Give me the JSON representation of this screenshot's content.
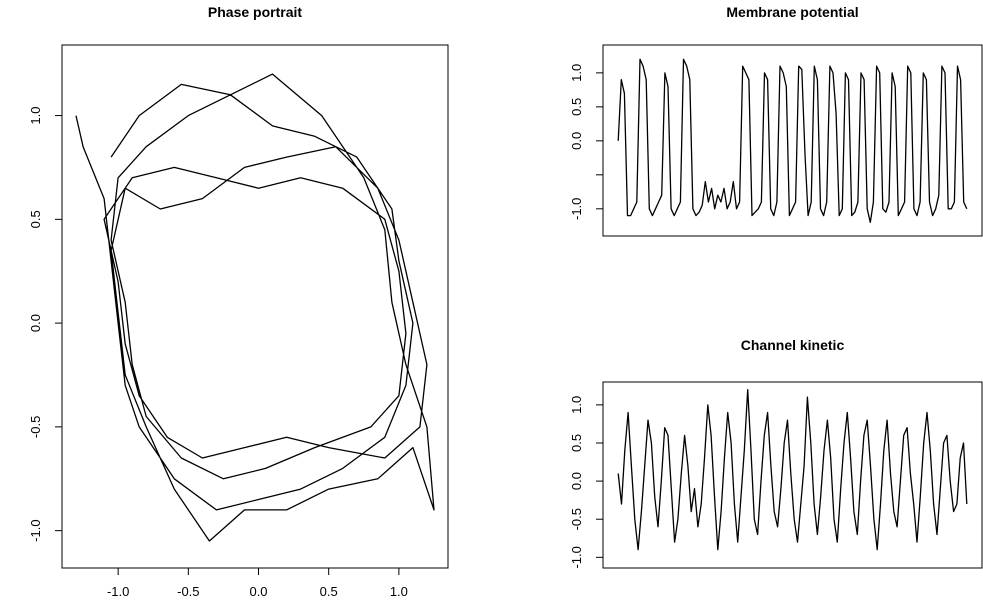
{
  "chart_data": [
    {
      "type": "line",
      "title": "Phase portrait",
      "color": "#000000",
      "x": [
        -1.3,
        -1.25,
        -1.1,
        -1.05,
        -1.0,
        -0.95,
        -0.85,
        -0.6,
        -0.3,
        0,
        0.3,
        0.6,
        0.9,
        1.05,
        1.1,
        1.0,
        0.95,
        0.7,
        0.4,
        0.1,
        -0.2,
        -0.5,
        -0.8,
        -1.0,
        -1.05,
        -0.95,
        -0.9,
        -0.8,
        -0.55,
        -0.25,
        0.05,
        0.4,
        0.8,
        1.0,
        1.05,
        1.0,
        0.9,
        0.6,
        0.3,
        0,
        -0.3,
        -0.6,
        -0.9,
        -1.1,
        -1.0,
        -0.95,
        -0.85,
        -0.65,
        -0.4,
        -0.1,
        0.2,
        0.5,
        0.9,
        1.15,
        1.2,
        1.1,
        1.0,
        0.85,
        0.55,
        0.2,
        -0.1,
        -0.4,
        -0.7,
        -0.95,
        -1.05,
        -1.0,
        -0.95,
        -0.8,
        -0.6,
        -0.35,
        -0.1,
        0.2,
        0.5,
        0.85,
        1.1,
        1.25,
        1.2,
        1.05,
        0.95,
        0.9,
        0.75,
        0.45,
        0.1,
        -0.2,
        -0.55,
        -0.85,
        -1.05
      ],
      "values": [
        1.0,
        0.85,
        0.6,
        0.3,
        0.0,
        -0.3,
        -0.5,
        -0.75,
        -0.9,
        -0.85,
        -0.8,
        -0.7,
        -0.55,
        -0.3,
        0,
        0.3,
        0.55,
        0.8,
        0.9,
        0.95,
        1.1,
        1.0,
        0.85,
        0.7,
        0.4,
        0.1,
        -0.2,
        -0.45,
        -0.65,
        -0.75,
        -0.7,
        -0.6,
        -0.5,
        -0.35,
        -0.05,
        0.25,
        0.5,
        0.65,
        0.7,
        0.65,
        0.7,
        0.75,
        0.7,
        0.5,
        0.2,
        -0.1,
        -0.35,
        -0.55,
        -0.65,
        -0.6,
        -0.55,
        -0.6,
        -0.65,
        -0.5,
        -0.2,
        0.1,
        0.4,
        0.65,
        0.85,
        0.8,
        0.75,
        0.6,
        0.55,
        0.65,
        0.35,
        0.05,
        -0.25,
        -0.5,
        -0.8,
        -1.05,
        -0.9,
        -0.9,
        -0.8,
        -0.75,
        -0.6,
        -0.9,
        -0.5,
        -0.2,
        0.1,
        0.45,
        0.7,
        1.0,
        1.2,
        1.1,
        1.15,
        1.0,
        0.8
      ],
      "xlim": [
        -1.4,
        1.35
      ],
      "ylim": [
        -1.18,
        1.34
      ],
      "xticks": [
        {
          "value": -1,
          "label": "-1.0"
        },
        {
          "value": -0.5,
          "label": "-0.5"
        },
        {
          "value": 0,
          "label": "0.0"
        },
        {
          "value": 0.5,
          "label": "0.5"
        },
        {
          "value": 1,
          "label": "1.0"
        }
      ],
      "yticks": [
        {
          "value": -1,
          "label": "-1.0"
        },
        {
          "value": -0.5,
          "label": "-0.5"
        },
        {
          "value": 0,
          "label": "0.0"
        },
        {
          "value": 0.5,
          "label": "0.5"
        },
        {
          "value": 1,
          "label": "1.0"
        }
      ]
    },
    {
      "type": "line",
      "title": "Membrane potential",
      "color": "#000000",
      "values": [
        0,
        0.9,
        0.7,
        -1.1,
        -1.1,
        -1.0,
        -0.9,
        1.2,
        1.1,
        0.9,
        -1.0,
        -1.1,
        -1.0,
        -0.9,
        -0.8,
        1.0,
        0.8,
        -1.0,
        -1.1,
        -1.0,
        -0.9,
        1.2,
        1.1,
        0.9,
        -1.0,
        -1.1,
        -1.05,
        -0.95,
        -0.6,
        -0.9,
        -0.7,
        -1.0,
        -0.8,
        -0.9,
        -0.7,
        -1.0,
        -0.9,
        -0.6,
        -1.0,
        -0.9,
        1.1,
        1.0,
        0.9,
        -1.1,
        -1.05,
        -1.0,
        -0.9,
        1.0,
        0.9,
        -1.0,
        -1.1,
        -0.9,
        1.1,
        1.0,
        0.8,
        -1.1,
        -1.0,
        -0.9,
        1.1,
        1.05,
        -0.2,
        -1.1,
        -0.9,
        1.1,
        0.9,
        -1.0,
        -1.1,
        -0.9,
        1.1,
        1.0,
        0.4,
        -1.1,
        -1.0,
        1.0,
        0.9,
        -1.1,
        -1.05,
        -0.9,
        1.0,
        0.9,
        -1.0,
        -1.2,
        -0.9,
        1.1,
        1.0,
        -1.0,
        -1.05,
        -0.9,
        1.0,
        0.8,
        -1.1,
        -1.0,
        -0.9,
        1.1,
        1.0,
        -1.0,
        -1.1,
        -0.9,
        1.0,
        0.9,
        -0.9,
        -1.1,
        -1.0,
        -0.8,
        1.1,
        1.0,
        -1.0,
        -1.0,
        -0.9,
        1.1,
        0.9,
        -0.9,
        -1.0
      ],
      "ylim": [
        -1.4,
        1.41
      ],
      "yticks": [
        {
          "value": -1,
          "label": "-1.0"
        },
        {
          "value": -0.5,
          "label": null
        },
        {
          "value": 0,
          "label": "0.0"
        },
        {
          "value": 0.5,
          "label": "0.5"
        },
        {
          "value": 1,
          "label": "1.0"
        }
      ]
    },
    {
      "type": "line",
      "title": "Channel kinetic",
      "color": "#000000",
      "values": [
        0.1,
        -0.3,
        0.4,
        0.9,
        0.2,
        -0.5,
        -0.9,
        -0.4,
        0.2,
        0.8,
        0.5,
        -0.2,
        -0.6,
        0.0,
        0.7,
        0.6,
        -0.1,
        -0.8,
        -0.5,
        0.1,
        0.6,
        0.2,
        -0.4,
        -0.1,
        -0.6,
        -0.3,
        0.3,
        1.0,
        0.6,
        -0.2,
        -0.9,
        -0.4,
        0.3,
        0.9,
        0.5,
        -0.3,
        -0.8,
        -0.2,
        0.4,
        1.2,
        0.4,
        -0.5,
        -0.7,
        0.0,
        0.6,
        0.9,
        0.2,
        -0.4,
        -0.6,
        -0.1,
        0.5,
        0.8,
        0.1,
        -0.5,
        -0.8,
        -0.3,
        0.2,
        1.1,
        0.5,
        -0.3,
        -0.7,
        -0.2,
        0.4,
        0.8,
        0.3,
        -0.5,
        -0.8,
        -0.1,
        0.5,
        0.9,
        0.3,
        -0.4,
        -0.7,
        0.0,
        0.6,
        0.8,
        0.2,
        -0.5,
        -0.9,
        -0.3,
        0.4,
        0.8,
        0.1,
        -0.4,
        -0.6,
        0.0,
        0.6,
        0.7,
        0.1,
        -0.3,
        -0.8,
        -0.2,
        0.5,
        0.9,
        0.4,
        -0.3,
        -0.7,
        -0.1,
        0.5,
        0.6,
        0.0,
        -0.4,
        -0.3,
        0.3,
        0.5,
        -0.3
      ],
      "ylim": [
        -1.14,
        1.3
      ],
      "yticks": [
        {
          "value": -1,
          "label": "-1.0"
        },
        {
          "value": -0.5,
          "label": "-0.5"
        },
        {
          "value": 0,
          "label": "0.0"
        },
        {
          "value": 0.5,
          "label": "0.5"
        },
        {
          "value": 1,
          "label": "1.0"
        }
      ]
    }
  ]
}
